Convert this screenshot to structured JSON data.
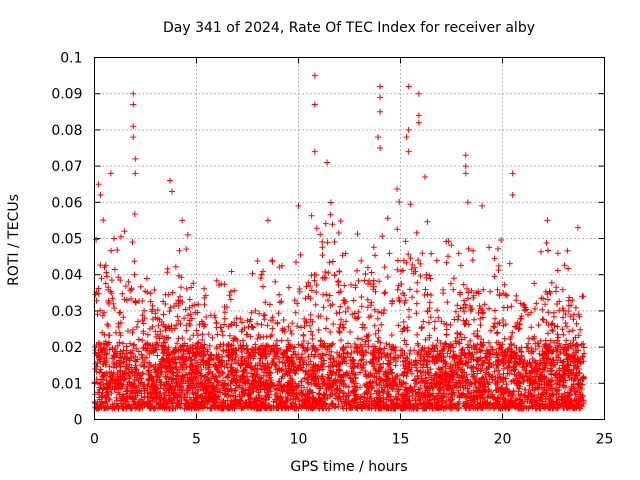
{
  "chart_data": {
    "type": "scatter",
    "title": "Day 341 of 2024, Rate Of TEC Index for receiver alby",
    "xlabel": "GPS time / hours",
    "ylabel": "ROTI / TECUs",
    "xlim": [
      0,
      25
    ],
    "ylim": [
      0,
      0.1
    ],
    "x_ticks": [
      "0",
      "5",
      "10",
      "15",
      "20",
      "25"
    ],
    "y_ticks": [
      "0",
      "0.01",
      "0.02",
      "0.03",
      "0.04",
      "0.05",
      "0.06",
      "0.07",
      "0.08",
      "0.09",
      "0.1"
    ],
    "grid": true,
    "marker": "+",
    "color": "#ff0000",
    "data_x_range": [
      0,
      24
    ],
    "envelope": {
      "hours": [
        0,
        0.5,
        1,
        1.5,
        2,
        2.5,
        3,
        3.5,
        4,
        4.5,
        5,
        5.5,
        6,
        6.5,
        7,
        7.5,
        8,
        8.5,
        9,
        9.5,
        10,
        10.5,
        11,
        11.5,
        12,
        12.5,
        13,
        13.5,
        14,
        14.5,
        15,
        15.5,
        16,
        16.5,
        17,
        17.5,
        18,
        18.5,
        19,
        19.5,
        20,
        20.5,
        21,
        21.5,
        22,
        22.5,
        23,
        23.5,
        24
      ],
      "typical_max": [
        0.04,
        0.05,
        0.045,
        0.045,
        0.05,
        0.04,
        0.035,
        0.03,
        0.04,
        0.045,
        0.03,
        0.03,
        0.03,
        0.035,
        0.03,
        0.03,
        0.035,
        0.035,
        0.04,
        0.03,
        0.045,
        0.045,
        0.05,
        0.05,
        0.05,
        0.045,
        0.045,
        0.05,
        0.05,
        0.055,
        0.055,
        0.05,
        0.05,
        0.045,
        0.04,
        0.04,
        0.045,
        0.04,
        0.04,
        0.04,
        0.04,
        0.04,
        0.035,
        0.035,
        0.04,
        0.04,
        0.04,
        0.035,
        0.025
      ]
    },
    "notable_points": [
      {
        "x": 0.2,
        "y": 0.065
      },
      {
        "x": 0.3,
        "y": 0.062
      },
      {
        "x": 0.8,
        "y": 0.068
      },
      {
        "x": 1.9,
        "y": 0.09
      },
      {
        "x": 1.9,
        "y": 0.087
      },
      {
        "x": 1.9,
        "y": 0.081
      },
      {
        "x": 1.9,
        "y": 0.078
      },
      {
        "x": 2.0,
        "y": 0.072
      },
      {
        "x": 2.0,
        "y": 0.068
      },
      {
        "x": 3.7,
        "y": 0.066
      },
      {
        "x": 3.8,
        "y": 0.063
      },
      {
        "x": 4.3,
        "y": 0.055
      },
      {
        "x": 8.5,
        "y": 0.055
      },
      {
        "x": 10.0,
        "y": 0.059
      },
      {
        "x": 10.8,
        "y": 0.095
      },
      {
        "x": 10.8,
        "y": 0.087
      },
      {
        "x": 10.8,
        "y": 0.074
      },
      {
        "x": 11.4,
        "y": 0.071
      },
      {
        "x": 14.0,
        "y": 0.092
      },
      {
        "x": 14.0,
        "y": 0.089
      },
      {
        "x": 14.0,
        "y": 0.085
      },
      {
        "x": 13.9,
        "y": 0.078
      },
      {
        "x": 14.0,
        "y": 0.075
      },
      {
        "x": 15.4,
        "y": 0.092
      },
      {
        "x": 15.4,
        "y": 0.08
      },
      {
        "x": 15.3,
        "y": 0.078
      },
      {
        "x": 15.4,
        "y": 0.074
      },
      {
        "x": 15.9,
        "y": 0.09
      },
      {
        "x": 15.9,
        "y": 0.084
      },
      {
        "x": 15.9,
        "y": 0.082
      },
      {
        "x": 16.2,
        "y": 0.067
      },
      {
        "x": 18.2,
        "y": 0.073
      },
      {
        "x": 18.2,
        "y": 0.07
      },
      {
        "x": 18.2,
        "y": 0.068
      },
      {
        "x": 18.3,
        "y": 0.06
      },
      {
        "x": 20.5,
        "y": 0.068
      },
      {
        "x": 20.5,
        "y": 0.062
      },
      {
        "x": 22.2,
        "y": 0.055
      },
      {
        "x": 23.7,
        "y": 0.053
      },
      {
        "x": 19.0,
        "y": 0.059
      }
    ]
  }
}
